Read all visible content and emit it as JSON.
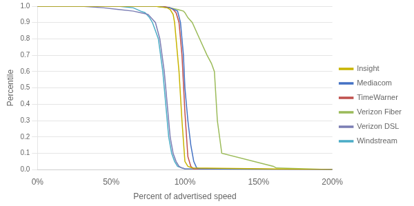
{
  "chart_data": {
    "type": "line",
    "xlabel": "Percent of advertised speed",
    "ylabel": "Percentile",
    "xlim": [
      0,
      2.0
    ],
    "ylim": [
      0,
      1.0
    ],
    "xticks": [
      {
        "value": 0.0,
        "label": "0%"
      },
      {
        "value": 0.5,
        "label": "50%"
      },
      {
        "value": 1.0,
        "label": "100%"
      },
      {
        "value": 1.5,
        "label": "150%"
      },
      {
        "value": 2.0,
        "label": "200%"
      }
    ],
    "yticks": [
      {
        "value": 0.0,
        "label": "0.0"
      },
      0.1,
      0.2,
      0.3,
      0.4,
      0.5,
      0.6,
      0.7,
      0.8,
      0.9,
      {
        "value": 1.0,
        "label": "1.0"
      }
    ],
    "grid": "y",
    "legend": "right",
    "series": [
      {
        "name": "Insight",
        "color": "#C8B400",
        "x": [
          0.0,
          0.6,
          0.8,
          0.88,
          0.9,
          0.92,
          0.93,
          0.94,
          0.96,
          0.98,
          1.0,
          1.02,
          1.05,
          2.0
        ],
        "values": [
          1.0,
          1.0,
          1.0,
          0.99,
          0.98,
          0.95,
          0.9,
          0.8,
          0.6,
          0.3,
          0.05,
          0.02,
          0.01,
          0.0
        ]
      },
      {
        "name": "Mediacom",
        "color": "#4472C4",
        "x": [
          0.0,
          0.6,
          0.8,
          0.9,
          0.95,
          0.97,
          0.99,
          1.0,
          1.02,
          1.04,
          1.06,
          1.08,
          1.1,
          2.0
        ],
        "values": [
          1.0,
          1.0,
          1.0,
          0.99,
          0.97,
          0.9,
          0.7,
          0.5,
          0.3,
          0.15,
          0.05,
          0.01,
          0.005,
          0.0
        ]
      },
      {
        "name": "TimeWarner",
        "color": "#C0504D",
        "x": [
          0.0,
          0.6,
          0.85,
          0.9,
          0.92,
          0.94,
          0.96,
          0.98,
          1.0,
          1.02,
          1.04,
          1.06,
          2.0
        ],
        "values": [
          1.0,
          1.0,
          1.0,
          0.99,
          0.98,
          0.96,
          0.9,
          0.7,
          0.35,
          0.08,
          0.02,
          0.005,
          0.0
        ]
      },
      {
        "name": "Verizon Fiber",
        "color": "#9BBB59",
        "x": [
          0.0,
          0.8,
          0.9,
          0.95,
          0.99,
          1.0,
          1.02,
          1.05,
          1.1,
          1.15,
          1.18,
          1.2,
          1.22,
          1.25,
          1.6,
          1.62,
          2.0
        ],
        "values": [
          1.0,
          1.0,
          0.99,
          0.98,
          0.97,
          0.96,
          0.93,
          0.9,
          0.8,
          0.7,
          0.65,
          0.6,
          0.3,
          0.1,
          0.02,
          0.01,
          0.0
        ]
      },
      {
        "name": "Verizon DSL",
        "color": "#7B7DB4",
        "x": [
          0.0,
          0.3,
          0.45,
          0.55,
          0.65,
          0.7,
          0.75,
          0.8,
          0.83,
          0.86,
          0.88,
          0.9,
          0.92,
          0.94,
          0.96,
          0.98,
          1.0,
          2.0
        ],
        "values": [
          1.0,
          1.0,
          0.99,
          0.98,
          0.97,
          0.96,
          0.95,
          0.9,
          0.8,
          0.6,
          0.4,
          0.2,
          0.1,
          0.05,
          0.02,
          0.01,
          0.005,
          0.0
        ]
      },
      {
        "name": "Windstream",
        "color": "#4BACC6",
        "x": [
          0.0,
          0.55,
          0.65,
          0.7,
          0.73,
          0.76,
          0.78,
          0.8,
          0.82,
          0.85,
          0.87,
          0.89,
          0.91,
          0.93,
          0.95,
          0.98,
          1.0,
          2.0
        ],
        "values": [
          1.0,
          1.0,
          0.99,
          0.97,
          0.96,
          0.93,
          0.9,
          0.85,
          0.8,
          0.6,
          0.4,
          0.2,
          0.1,
          0.05,
          0.02,
          0.01,
          0.005,
          0.0
        ]
      }
    ]
  }
}
